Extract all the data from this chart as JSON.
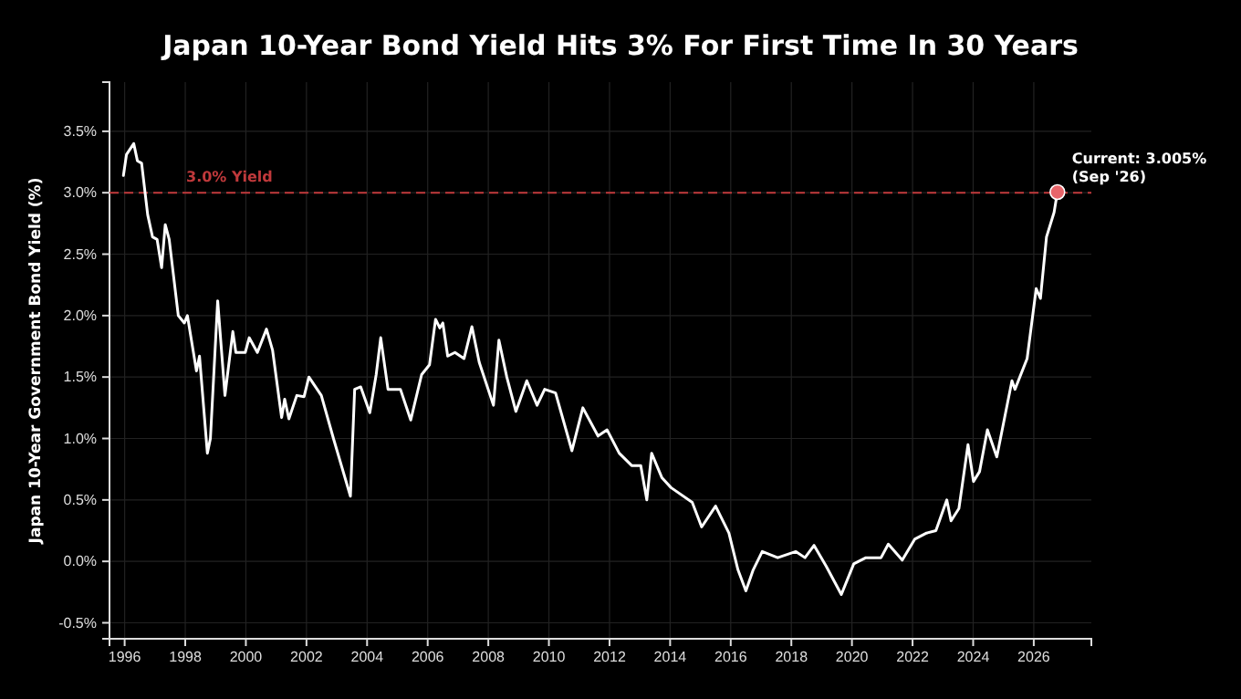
{
  "chart_data": {
    "type": "line",
    "title": "Japan 10-Year Bond Yield Hits 3% For First Time In 30 Years",
    "ylabel": "Japan 10-Year Government Bond Yield (%)",
    "xlim": [
      1995.5,
      2027.9
    ],
    "xticks": [
      1996,
      1998,
      2000,
      2002,
      2004,
      2006,
      2008,
      2010,
      2012,
      2014,
      2016,
      2018,
      2020,
      2022,
      2024,
      2026
    ],
    "ylim": [
      -0.63,
      3.9
    ],
    "yticks": [
      {
        "value": -0.5,
        "label": "-0.5%"
      },
      {
        "value": 0,
        "label": "0.0%"
      },
      {
        "value": 0.5,
        "label": "0.5%"
      },
      {
        "value": 1,
        "label": "1.0%"
      },
      {
        "value": 1.5,
        "label": "1.5%"
      },
      {
        "value": 2,
        "label": "2.0%"
      },
      {
        "value": 2.5,
        "label": "2.5%"
      },
      {
        "value": 3,
        "label": "3.0%"
      },
      {
        "value": 3.5,
        "label": "3.5%"
      }
    ],
    "grid": true,
    "line_style": "solid",
    "marker": "none",
    "series": [
      {
        "color": "#ffffff",
        "x": [
          1995.96,
          1996.06,
          1996.3,
          1996.42,
          1996.56,
          1996.76,
          1996.92,
          1997.07,
          1997.22,
          1997.34,
          1997.47,
          1997.77,
          1997.97,
          1998.07,
          1998.37,
          1998.47,
          1998.73,
          1998.83,
          1999.07,
          1999.31,
          1999.57,
          1999.67,
          1999.98,
          2000.11,
          2000.38,
          2000.68,
          2000.88,
          2001.18,
          2001.28,
          2001.42,
          2001.68,
          2001.92,
          2002.08,
          2002.49,
          2002.89,
          2003.45,
          2003.59,
          2003.79,
          2004.09,
          2004.3,
          2004.45,
          2004.69,
          2005.1,
          2005.44,
          2005.8,
          2006.06,
          2006.26,
          2006.4,
          2006.5,
          2006.66,
          2006.9,
          2007.2,
          2007.46,
          2007.7,
          2008.17,
          2008.35,
          2008.61,
          2008.91,
          2009.27,
          2009.61,
          2009.86,
          2010.22,
          2010.76,
          2011.12,
          2011.62,
          2011.92,
          2012.32,
          2012.73,
          2013.03,
          2013.23,
          2013.39,
          2013.73,
          2014.03,
          2014.73,
          2015.04,
          2015.5,
          2015.94,
          2016.24,
          2016.5,
          2016.74,
          2017.04,
          2017.55,
          2018.15,
          2018.45,
          2018.75,
          2019.15,
          2019.65,
          2020.06,
          2020.46,
          2020.96,
          2021.2,
          2021.66,
          2022.07,
          2022.46,
          2022.77,
          2023.13,
          2023.27,
          2023.53,
          2023.83,
          2024.01,
          2024.21,
          2024.47,
          2024.78,
          2025.28,
          2025.38,
          2025.78,
          2026.08,
          2026.22,
          2026.42,
          2026.67,
          2026.78
        ],
        "values": [
          3.14,
          3.31,
          3.4,
          3.26,
          3.24,
          2.82,
          2.64,
          2.62,
          2.39,
          2.74,
          2.62,
          2.0,
          1.94,
          2.0,
          1.55,
          1.67,
          0.88,
          1.0,
          2.12,
          1.35,
          1.87,
          1.7,
          1.7,
          1.82,
          1.7,
          1.89,
          1.72,
          1.17,
          1.32,
          1.16,
          1.35,
          1.34,
          1.5,
          1.35,
          1.0,
          0.53,
          1.4,
          1.42,
          1.21,
          1.52,
          1.82,
          1.4,
          1.4,
          1.15,
          1.52,
          1.6,
          1.97,
          1.9,
          1.94,
          1.67,
          1.7,
          1.65,
          1.91,
          1.62,
          1.27,
          1.8,
          1.5,
          1.22,
          1.47,
          1.27,
          1.4,
          1.37,
          0.9,
          1.25,
          1.02,
          1.07,
          0.88,
          0.78,
          0.78,
          0.5,
          0.88,
          0.68,
          0.6,
          0.48,
          0.28,
          0.45,
          0.23,
          -0.07,
          -0.24,
          -0.07,
          0.08,
          0.03,
          0.08,
          0.03,
          0.13,
          -0.04,
          -0.27,
          -0.02,
          0.03,
          0.03,
          0.14,
          0.01,
          0.18,
          0.23,
          0.25,
          0.5,
          0.33,
          0.43,
          0.95,
          0.65,
          0.73,
          1.07,
          0.85,
          1.47,
          1.4,
          1.65,
          2.22,
          2.14,
          2.64,
          2.84,
          3.005
        ]
      },
      {
        "type": "scatter",
        "color": "#e8656a",
        "marker": "circle",
        "x": [
          2026.78
        ],
        "values": [
          3.005
        ]
      }
    ],
    "ref_lines": [
      {
        "axis": "y",
        "value": 3.0,
        "label": "3.0% Yield",
        "color": "#c0393b",
        "line_style": "dashed"
      }
    ],
    "annotations": [
      {
        "text": "Current: 3.005%\n(Sep '26)",
        "x": 2026.78,
        "y": 3.005
      }
    ]
  }
}
